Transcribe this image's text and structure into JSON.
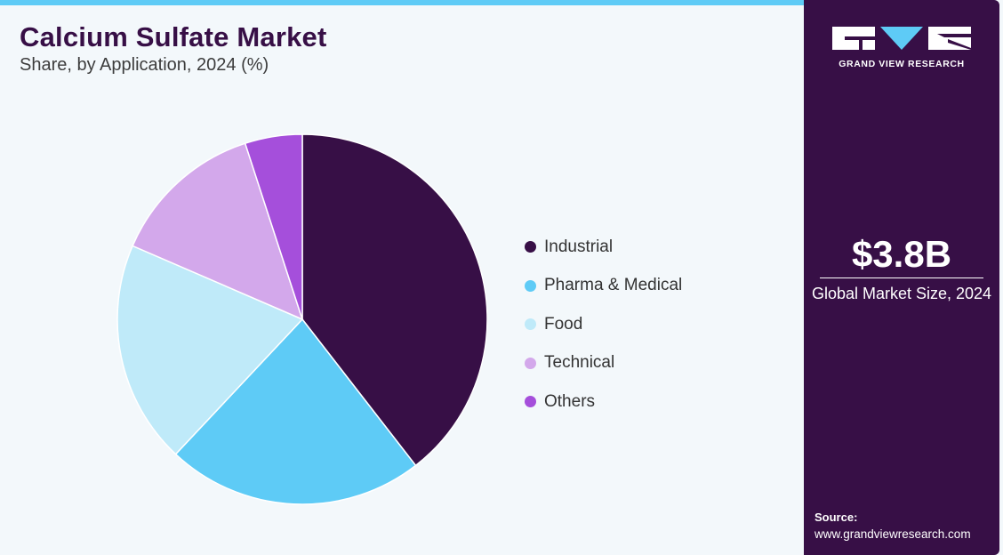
{
  "header": {
    "title": "Calcium Sulfate Market",
    "subtitle": "Share, by Application, 2024 (%)"
  },
  "chart_data": {
    "type": "pie",
    "title": "Calcium Sulfate Market",
    "subtitle": "Share, by Application, 2024 (%)",
    "categories": [
      "Industrial",
      "Pharma & Medical",
      "Food",
      "Technical",
      "Others"
    ],
    "values": [
      39.5,
      22.5,
      19.5,
      13.5,
      5.0
    ],
    "colors": [
      "#370f46",
      "#5ecbf6",
      "#bfeaf9",
      "#d3a8eb",
      "#a54fdb"
    ],
    "start_angle_deg": 0,
    "direction": "clockwise",
    "legend_position": "right"
  },
  "sidebar": {
    "logo_text": "GRAND VIEW RESEARCH",
    "market_value": "$3.8B",
    "market_label": "Global Market Size, 2024",
    "source_label": "Source:",
    "source_url": "www.grandviewresearch.com",
    "background_color": "#370f46"
  }
}
